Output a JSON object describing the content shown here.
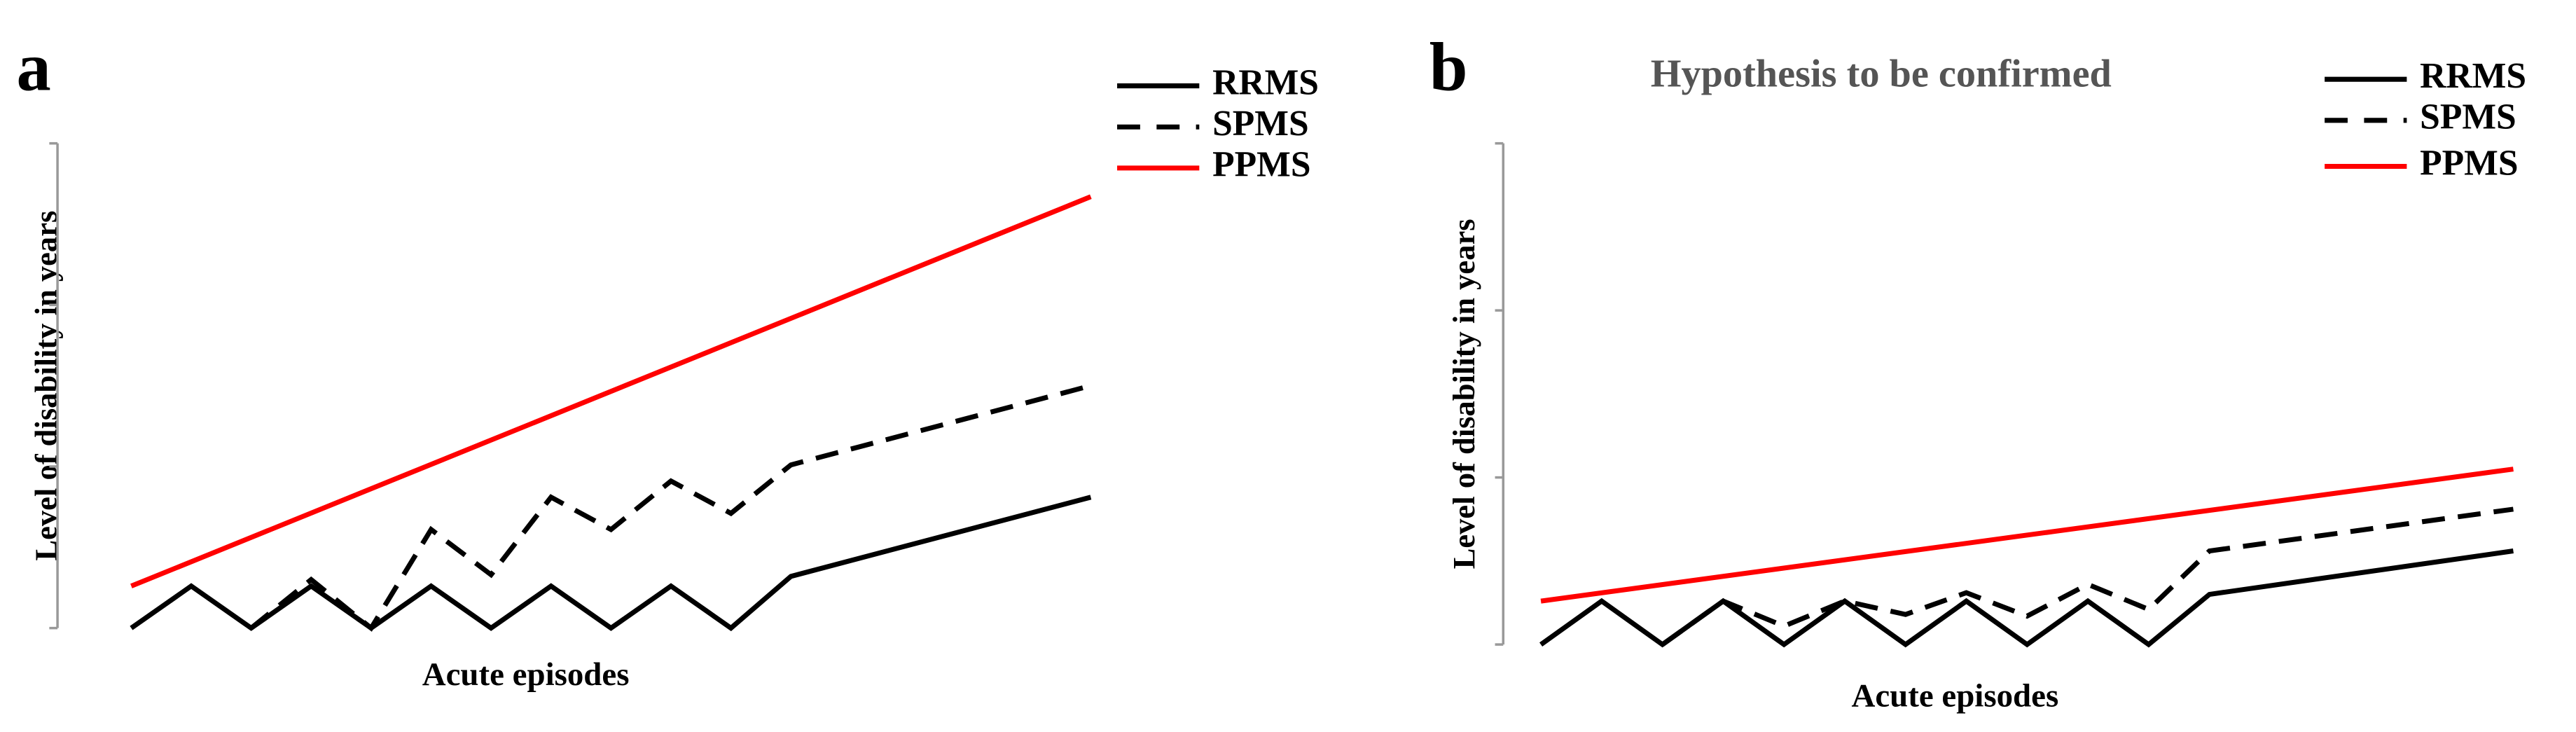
{
  "chart_data": [
    {
      "type": "line",
      "panel_label": "a",
      "y_label": "Level of disability  in years",
      "x_label": "Acute episodes",
      "xlim": [
        -1.23,
        16.44
      ],
      "ylim": [
        0,
        3
      ],
      "yticks": [
        0,
        1,
        2,
        3
      ],
      "series": [
        {
          "name": "RRMS",
          "color": "#000000",
          "dash": false,
          "x": [
            0,
            1,
            2,
            3,
            4,
            5,
            6,
            7,
            8,
            9,
            10,
            11,
            16
          ],
          "values": [
            0,
            0.26,
            0,
            0.26,
            0,
            0.26,
            0,
            0.26,
            0,
            0.26,
            0,
            0.32,
            0.81
          ]
        },
        {
          "name": "SPMS",
          "color": "#000000",
          "dash": true,
          "x": [
            2,
            3,
            4,
            5,
            6,
            7,
            8,
            9,
            10,
            11,
            16
          ],
          "values": [
            0,
            0.3,
            0,
            0.61,
            0.33,
            0.81,
            0.61,
            0.91,
            0.71,
            1.01,
            1.5
          ]
        },
        {
          "name": "PPMS",
          "color": "#ff0000",
          "dash": false,
          "x": [
            0,
            16
          ],
          "values": [
            0.26,
            2.67
          ]
        }
      ]
    },
    {
      "type": "line",
      "panel_label": "b",
      "title": "Hypothesis to be confirmed",
      "y_label": "Level of disability  in years",
      "x_label": "Acute episodes",
      "xlim": [
        -0.62,
        16.41
      ],
      "ylim": [
        0,
        3
      ],
      "yticks": [
        0,
        1,
        2,
        3
      ],
      "series": [
        {
          "name": "RRMS",
          "color": "#000000",
          "dash": false,
          "x": [
            0,
            1,
            2,
            3,
            4,
            5,
            6,
            7,
            8,
            9,
            10,
            11,
            16
          ],
          "values": [
            0,
            0.26,
            0,
            0.26,
            0,
            0.26,
            0,
            0.26,
            0,
            0.26,
            0,
            0.3,
            0.56
          ]
        },
        {
          "name": "SPMS",
          "color": "#000000",
          "dash": true,
          "x": [
            2,
            3,
            4,
            5,
            6,
            7,
            8,
            9,
            10,
            11,
            16
          ],
          "values": [
            0,
            0.26,
            0.11,
            0.26,
            0.18,
            0.31,
            0.17,
            0.36,
            0.21,
            0.56,
            0.81
          ]
        },
        {
          "name": "PPMS",
          "color": "#ff0000",
          "dash": false,
          "x": [
            0,
            16
          ],
          "values": [
            0.26,
            1.05
          ]
        }
      ]
    }
  ]
}
